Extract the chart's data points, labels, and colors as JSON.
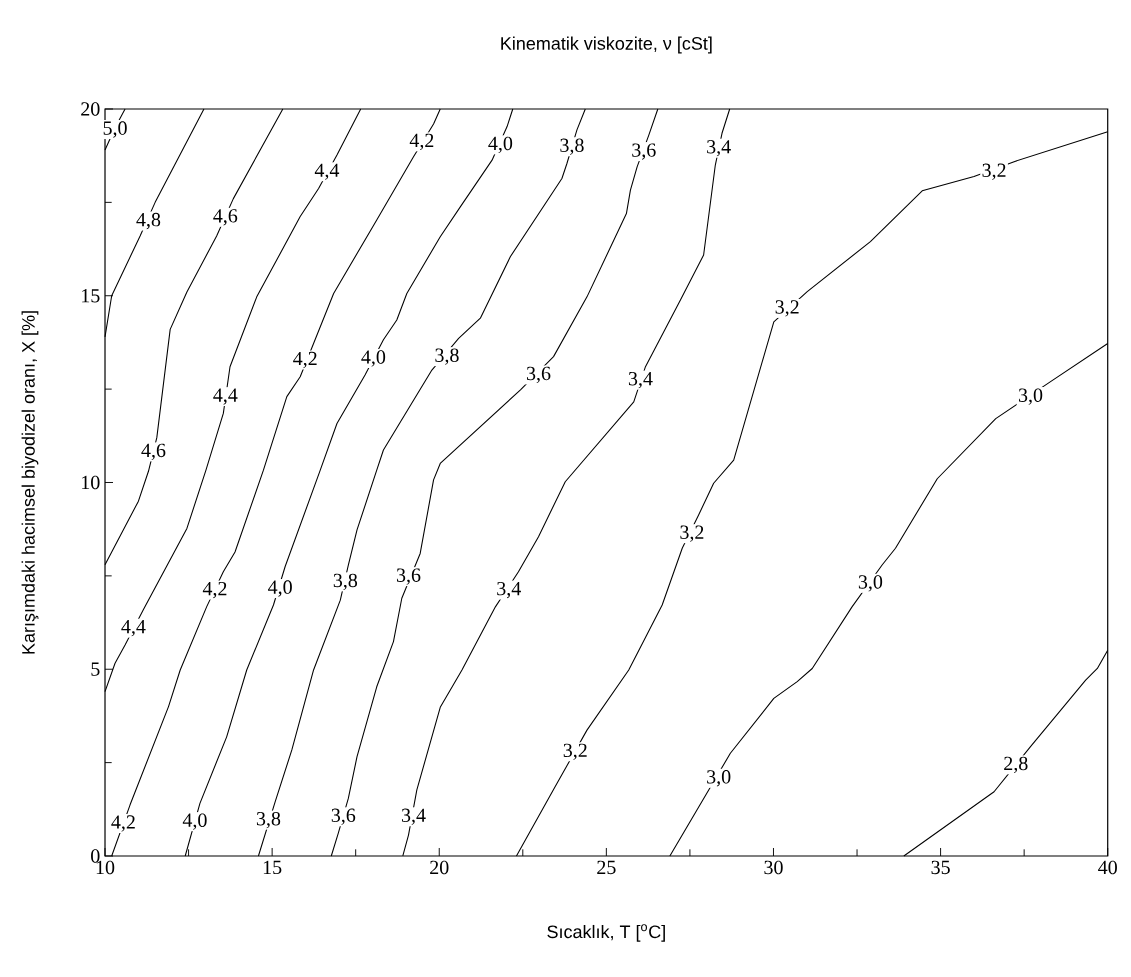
{
  "chart_data": {
    "type": "line",
    "title": "Kinematik viskozite, ν [cSt]",
    "xlabel": "Sıcaklık, T [$^{o}$C]",
    "ylabel": "Karışımdaki hacimsel biyodizel oranı, X [%]",
    "xlim": [
      10,
      40
    ],
    "ylim": [
      0,
      20
    ],
    "xticks": [
      10,
      {
        "value": 12.5,
        "label": null
      },
      15,
      {
        "value": 17.5,
        "label": null
      },
      20,
      {
        "value": 22.5,
        "label": null
      },
      25,
      {
        "value": 27.5,
        "label": null
      },
      30,
      {
        "value": 32.5,
        "label": null
      },
      35,
      {
        "value": 37.5,
        "label": null
      },
      40
    ],
    "yticks": [
      0,
      {
        "value": 2.5,
        "label": null
      },
      5,
      {
        "value": 7.5,
        "label": null
      },
      10,
      {
        "value": 12.5,
        "label": null
      },
      15,
      {
        "value": 17.5,
        "label": null
      },
      20
    ],
    "marker": "none",
    "line_style": "solid",
    "series": [
      {
        "color": "#000000",
        "x": [
          10.0,
          10.3,
          10.6
        ],
        "values": [
          18.9,
          19.5,
          20
        ]
      },
      {
        "color": "#000000",
        "x": [
          10.0,
          10.2,
          11.05,
          11.5,
          12.96
        ],
        "values": [
          13.9,
          15.0,
          16.6,
          17.5,
          20
        ]
      },
      {
        "color": "#000000",
        "x": [
          10.0,
          11.0,
          11.3,
          11.55,
          11.95,
          12.45,
          13.34,
          13.84,
          15.32
        ],
        "values": [
          7.8,
          9.5,
          10.3,
          11.2,
          14.1,
          15.1,
          16.6,
          17.6,
          20
        ]
      },
      {
        "color": "#000000",
        "x": [
          10.0,
          10.3,
          10.6,
          11.15,
          12.45,
          13.02,
          13.54,
          13.74,
          14.54,
          15.84,
          16.39,
          16.94,
          17.65
        ],
        "values": [
          4.4,
          5.16,
          5.65,
          6.6,
          8.77,
          10.33,
          11.85,
          13.1,
          14.97,
          17.12,
          17.87,
          18.77,
          20
        ]
      },
      {
        "color": "#000000",
        "x": [
          10.2,
          10.75,
          11.9,
          12.25,
          13.04,
          13.54,
          13.89,
          14.74,
          15.44,
          15.84,
          16.24,
          16.84,
          18.13,
          19.23,
          19.83,
          20.03
        ],
        "values": [
          0,
          1.37,
          4.0,
          4.98,
          6.67,
          7.61,
          8.14,
          10.33,
          12.3,
          12.83,
          13.72,
          15.06,
          17.03,
          18.72,
          19.6,
          20
        ]
      },
      {
        "color": "#000000",
        "x": [
          12.4,
          12.84,
          13.64,
          14.24,
          15.04,
          15.39,
          16.44,
          16.94,
          17.78,
          18.33,
          18.73,
          19.03,
          20.03,
          20.63,
          21.58,
          22.03,
          22.2
        ],
        "values": [
          0,
          1.41,
          3.19,
          4.98,
          6.72,
          7.75,
          10.33,
          11.58,
          12.88,
          13.82,
          14.35,
          15.06,
          16.58,
          17.38,
          18.63,
          19.53,
          20
        ]
      },
      {
        "color": "#000000",
        "x": [
          14.59,
          15.09,
          15.59,
          16.24,
          17.04,
          17.28,
          17.54,
          18.13,
          18.33,
          19.78,
          20.58,
          21.23,
          22.13,
          23.67,
          23.82,
          24.12,
          24.37
        ],
        "values": [
          0,
          1.45,
          2.84,
          4.98,
          6.85,
          7.79,
          8.73,
          10.33,
          10.87,
          13.01,
          13.86,
          14.4,
          16.05,
          18.14,
          18.54,
          19.44,
          20
        ]
      },
      {
        "color": "#000000",
        "x": [
          16.77,
          16.98,
          17.28,
          17.54,
          18.13,
          18.63,
          18.88,
          19.43,
          19.83,
          20.03,
          22.43,
          23.42,
          24.42,
          25.6,
          25.72,
          25.92,
          26.27,
          26.54
        ],
        "values": [
          0,
          0.61,
          1.54,
          2.66,
          4.53,
          5.74,
          6.9,
          8.1,
          10.07,
          10.51,
          12.48,
          13.37,
          14.97,
          17.2,
          17.83,
          18.45,
          19.3,
          20
        ]
      },
      {
        "color": "#000000",
        "x": [
          18.91,
          19.08,
          19.33,
          20.03,
          20.68,
          21.68,
          22.37,
          22.97,
          23.77,
          25.82,
          26.17,
          27.22,
          27.91,
          28.26,
          28.46,
          28.69
        ],
        "values": [
          0,
          0.56,
          1.77,
          3.98,
          4.98,
          6.67,
          7.61,
          8.55,
          10.02,
          12.16,
          13.1,
          14.89,
          16.09,
          18.5,
          19.35,
          20
        ]
      },
      {
        "color": "#000000",
        "x": [
          22.31,
          23.47,
          24.42,
          25.67,
          26.67,
          27.27,
          27.76,
          28.21,
          28.81,
          30.01,
          31.01,
          32.9,
          34.45,
          36.0,
          37.2,
          40.0
        ],
        "values": [
          0,
          1.86,
          3.37,
          4.98,
          6.72,
          8.24,
          9.13,
          9.98,
          10.6,
          14.3,
          15.11,
          16.45,
          17.81,
          18.19,
          18.59,
          19.39
        ]
      },
      {
        "color": "#000000",
        "x": [
          26.9,
          27.71,
          28.71,
          30.01,
          30.71,
          31.16,
          32.35,
          33.25,
          33.65,
          34.9,
          36.65,
          38.29,
          40.0
        ],
        "values": [
          0,
          1.23,
          2.75,
          4.22,
          4.67,
          5.02,
          6.67,
          7.79,
          8.24,
          10.1,
          11.71,
          12.7,
          13.72
        ]
      },
      {
        "color": "#000000",
        "x": [
          33.9,
          36.6,
          37.69,
          39.34,
          39.69,
          40.0
        ],
        "values": [
          0,
          1.72,
          2.93,
          4.71,
          5.02,
          5.51
        ]
      }
    ],
    "annotations": [
      {
        "text": "5,0",
        "x": 10.3,
        "y": 19.45
      },
      {
        "text": "4,8",
        "x": 11.3,
        "y": 17.0
      },
      {
        "text": "4,6",
        "x": 11.45,
        "y": 10.82
      },
      {
        "text": "4,6",
        "x": 13.6,
        "y": 17.1
      },
      {
        "text": "4,4",
        "x": 10.85,
        "y": 6.1
      },
      {
        "text": "4,4",
        "x": 13.6,
        "y": 12.3
      },
      {
        "text": "4,4",
        "x": 16.64,
        "y": 18.32
      },
      {
        "text": "4,2",
        "x": 10.55,
        "y": 0.87
      },
      {
        "text": "4,2",
        "x": 13.29,
        "y": 7.12
      },
      {
        "text": "4,2",
        "x": 15.99,
        "y": 13.28
      },
      {
        "text": "4,2",
        "x": 19.48,
        "y": 19.12
      },
      {
        "text": "4,0",
        "x": 12.69,
        "y": 0.92
      },
      {
        "text": "4,0",
        "x": 15.24,
        "y": 7.16
      },
      {
        "text": "4,0",
        "x": 18.03,
        "y": 13.32
      },
      {
        "text": "4,0",
        "x": 21.83,
        "y": 19.04
      },
      {
        "text": "3,8",
        "x": 14.89,
        "y": 0.96
      },
      {
        "text": "3,8",
        "x": 17.19,
        "y": 7.34
      },
      {
        "text": "3,8",
        "x": 20.23,
        "y": 13.37
      },
      {
        "text": "3,8",
        "x": 23.97,
        "y": 18.99
      },
      {
        "text": "3,6",
        "x": 17.13,
        "y": 1.05
      },
      {
        "text": "3,6",
        "x": 19.08,
        "y": 7.48
      },
      {
        "text": "3,6",
        "x": 22.97,
        "y": 12.88
      },
      {
        "text": "3,6",
        "x": 26.12,
        "y": 18.86
      },
      {
        "text": "3,4",
        "x": 19.23,
        "y": 1.05
      },
      {
        "text": "3,4",
        "x": 22.08,
        "y": 7.12
      },
      {
        "text": "3,4",
        "x": 26.02,
        "y": 12.74
      },
      {
        "text": "3,4",
        "x": 28.36,
        "y": 18.95
      },
      {
        "text": "3,2",
        "x": 24.07,
        "y": 2.79
      },
      {
        "text": "3,2",
        "x": 27.56,
        "y": 8.63
      },
      {
        "text": "3,2",
        "x": 30.41,
        "y": 14.66
      },
      {
        "text": "3,2",
        "x": 36.6,
        "y": 18.32
      },
      {
        "text": "3,0",
        "x": 28.36,
        "y": 2.08
      },
      {
        "text": "3,0",
        "x": 32.9,
        "y": 7.3
      },
      {
        "text": "3,0",
        "x": 37.69,
        "y": 12.3
      },
      {
        "text": "2,8",
        "x": 37.25,
        "y": 2.44
      }
    ]
  }
}
